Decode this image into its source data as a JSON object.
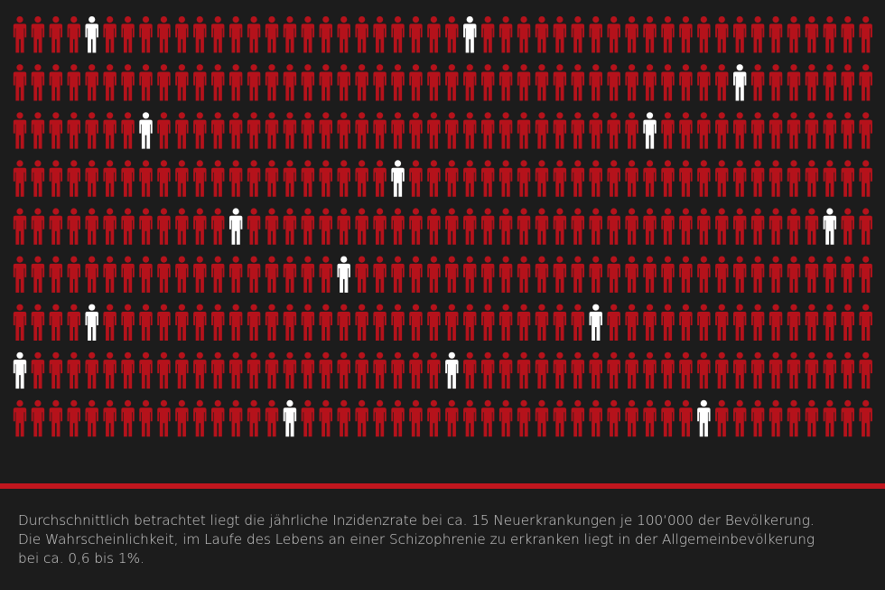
{
  "chart_data": {
    "type": "pictogram",
    "rows": 9,
    "columns": 48,
    "highlighted": [
      {
        "row": 1,
        "column": 5
      },
      {
        "row": 1,
        "column": 26
      },
      {
        "row": 2,
        "column": 41
      },
      {
        "row": 3,
        "column": 8
      },
      {
        "row": 3,
        "column": 36
      },
      {
        "row": 4,
        "column": 22
      },
      {
        "row": 5,
        "column": 13
      },
      {
        "row": 5,
        "column": 46
      },
      {
        "row": 6,
        "column": 19
      },
      {
        "row": 7,
        "column": 5
      },
      {
        "row": 7,
        "column": 33
      },
      {
        "row": 8,
        "column": 1
      },
      {
        "row": 8,
        "column": 25
      },
      {
        "row": 9,
        "column": 16
      },
      {
        "row": 9,
        "column": 39
      }
    ],
    "colors": {
      "default": "#b5121b",
      "highlighted": "#ffffff"
    },
    "icon": "person-icon"
  },
  "colors": {
    "background": "#1c1c1c",
    "divider": "#c0161e",
    "caption_text": "#cfcfcf"
  },
  "caption": {
    "line1": "Durchschnittlich betrachtet liegt die jährliche Inzidenzrate bei ca. 15 Neuerkrankungen je 100‘000 der Bevölkerung.",
    "line2": "Die Wahrscheinlichkeit, im Laufe des Lebens an einer Schizophrenie zu erkranken liegt in der Allgemeinbevölkerung",
    "line3": "bei ca. 0,6 bis 1%."
  }
}
